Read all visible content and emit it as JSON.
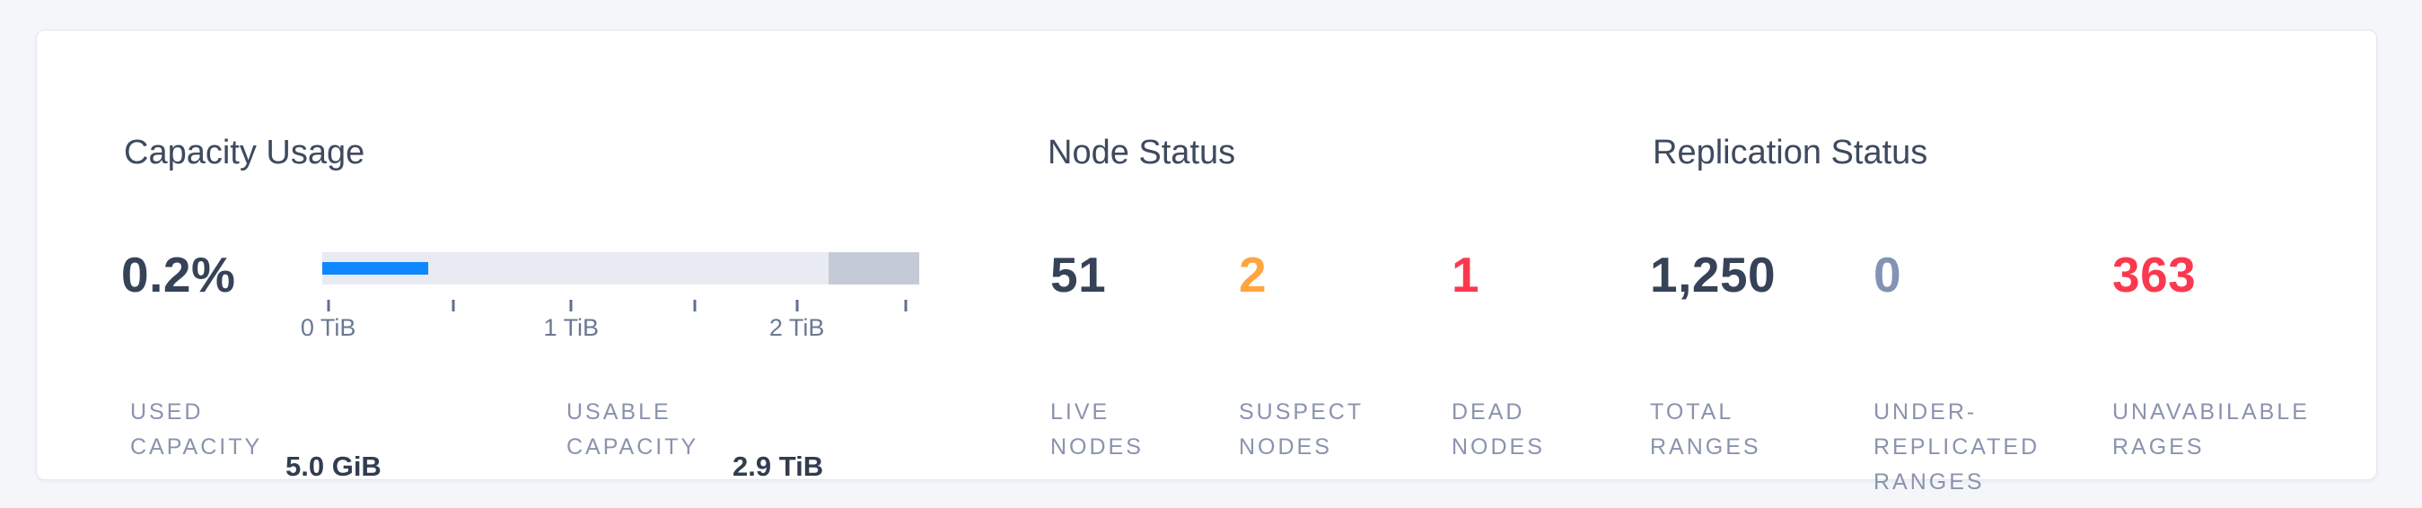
{
  "page": {
    "background": "#f4f6fa",
    "card_background": "#ffffff"
  },
  "capacity": {
    "title": "Capacity Usage",
    "percent": "0.2%",
    "stats": [
      {
        "label_lines": [
          "USED",
          "CAPACITY"
        ],
        "value": "5.0 GiB"
      },
      {
        "label_lines": [
          "USABLE",
          "CAPACITY"
        ],
        "value": "2.9 TiB"
      }
    ]
  },
  "chart_data": {
    "type": "bar",
    "title": "Capacity Usage",
    "percent_used": "0.2%",
    "used_capacity": "5.0 GiB",
    "usable_capacity": "2.9 TiB",
    "axis_unit": "TiB",
    "used_fraction": 0.177,
    "reserved_from_fraction": 0.848,
    "colors": {
      "track": "#e8ebf2",
      "used": "#0f87ff",
      "reserved": "#c5cbd6"
    },
    "ticks": [
      {
        "pos": 0.01,
        "label": "0 TiB"
      },
      {
        "pos": 0.22,
        "label": ""
      },
      {
        "pos": 0.417,
        "label": "1 TiB"
      },
      {
        "pos": 0.624,
        "label": ""
      },
      {
        "pos": 0.795,
        "label": "2 TiB"
      },
      {
        "pos": 0.977,
        "label": ""
      }
    ]
  },
  "node_status": {
    "title": "Node Status",
    "stats": [
      {
        "value": "51",
        "color": "#364257",
        "label_lines": [
          "LIVE",
          "NODES"
        ]
      },
      {
        "value": "2",
        "color": "#ffa53e",
        "label_lines": [
          "SUSPECT",
          "NODES"
        ]
      },
      {
        "value": "1",
        "color": "#fb394e",
        "label_lines": [
          "DEAD",
          "NODES"
        ]
      }
    ]
  },
  "replication_status": {
    "title": "Replication Status",
    "stats": [
      {
        "value": "1,250",
        "color": "#364257",
        "label_lines": [
          "TOTAL",
          "RANGES"
        ]
      },
      {
        "value": "0",
        "color": "#8492b4",
        "label_lines": [
          "UNDER-",
          "REPLICATED",
          "RANGES"
        ]
      },
      {
        "value": "363",
        "color": "#fb394e",
        "label_lines": [
          "UNAVABILABLE",
          "RAGES"
        ]
      }
    ]
  }
}
